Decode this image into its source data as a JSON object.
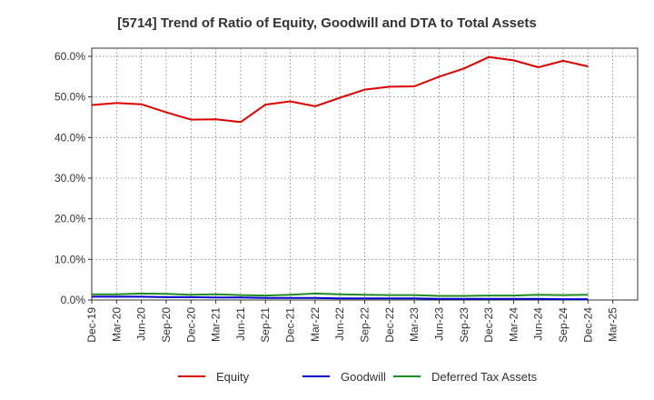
{
  "chart_data": {
    "type": "line",
    "title": "[5714]  Trend of Ratio of Equity, Goodwill and DTA to Total Assets",
    "xlabel": "",
    "ylabel": "",
    "ylim": [
      0,
      62
    ],
    "yticks": [
      0,
      10,
      20,
      30,
      40,
      50,
      60
    ],
    "ytick_labels": [
      "0.0%",
      "10.0%",
      "20.0%",
      "30.0%",
      "40.0%",
      "50.0%",
      "60.0%"
    ],
    "categories": [
      "Dec-19",
      "Mar-20",
      "Jun-20",
      "Sep-20",
      "Dec-20",
      "Mar-21",
      "Jun-21",
      "Sep-21",
      "Dec-21",
      "Mar-22",
      "Jun-22",
      "Sep-22",
      "Dec-22",
      "Mar-23",
      "Jun-23",
      "Sep-23",
      "Dec-23",
      "Mar-24",
      "Jun-24",
      "Sep-24",
      "Dec-24",
      "Mar-25"
    ],
    "series": [
      {
        "name": "Equity",
        "color": "#dd0000",
        "values": [
          48.0,
          48.5,
          48.2,
          46.2,
          44.4,
          44.5,
          43.8,
          48.1,
          48.9,
          47.7,
          49.8,
          51.8,
          52.5,
          52.6,
          55.0,
          57.0,
          59.8,
          59.0,
          57.3,
          58.9,
          57.5,
          null
        ]
      },
      {
        "name": "Goodwill",
        "color": "#0000cc",
        "values": [
          0.8,
          0.8,
          0.8,
          0.7,
          0.7,
          0.6,
          0.6,
          0.5,
          0.5,
          0.5,
          0.4,
          0.4,
          0.4,
          0.4,
          0.3,
          0.3,
          0.3,
          0.3,
          0.3,
          0.2,
          0.2,
          null
        ]
      },
      {
        "name": "Deferred Tax Assets",
        "color": "#228b22",
        "values": [
          1.4,
          1.4,
          1.6,
          1.5,
          1.3,
          1.4,
          1.2,
          1.1,
          1.3,
          1.6,
          1.4,
          1.3,
          1.2,
          1.2,
          1.0,
          1.0,
          1.1,
          1.1,
          1.3,
          1.2,
          1.3,
          null
        ]
      }
    ],
    "grid": true,
    "legend_position": "bottom"
  }
}
